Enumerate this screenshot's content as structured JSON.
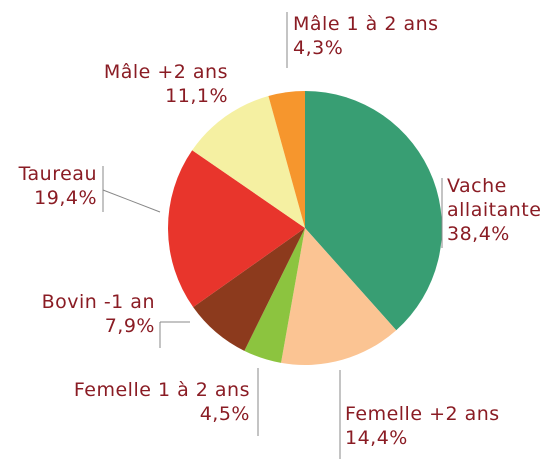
{
  "chart_data": {
    "type": "pie",
    "categories": [
      "Vache allaitante",
      "Femelle +2 ans",
      "Femelle 1 à 2 ans",
      "Bovin -1 an",
      "Taureau",
      "Mâle +2 ans",
      "Mâle 1 à 2 ans"
    ],
    "values": [
      38.4,
      14.4,
      4.5,
      7.9,
      19.4,
      11.1,
      4.3
    ],
    "value_labels": [
      "38,4%",
      "14,4%",
      "4,5%",
      "7,9%",
      "19,4%",
      "11,1%",
      "4,3%"
    ],
    "colors": [
      "#389e73",
      "#fbc493",
      "#8cc43f",
      "#8c3a1d",
      "#e8352c",
      "#f5f0a2",
      "#f6962d"
    ]
  }
}
